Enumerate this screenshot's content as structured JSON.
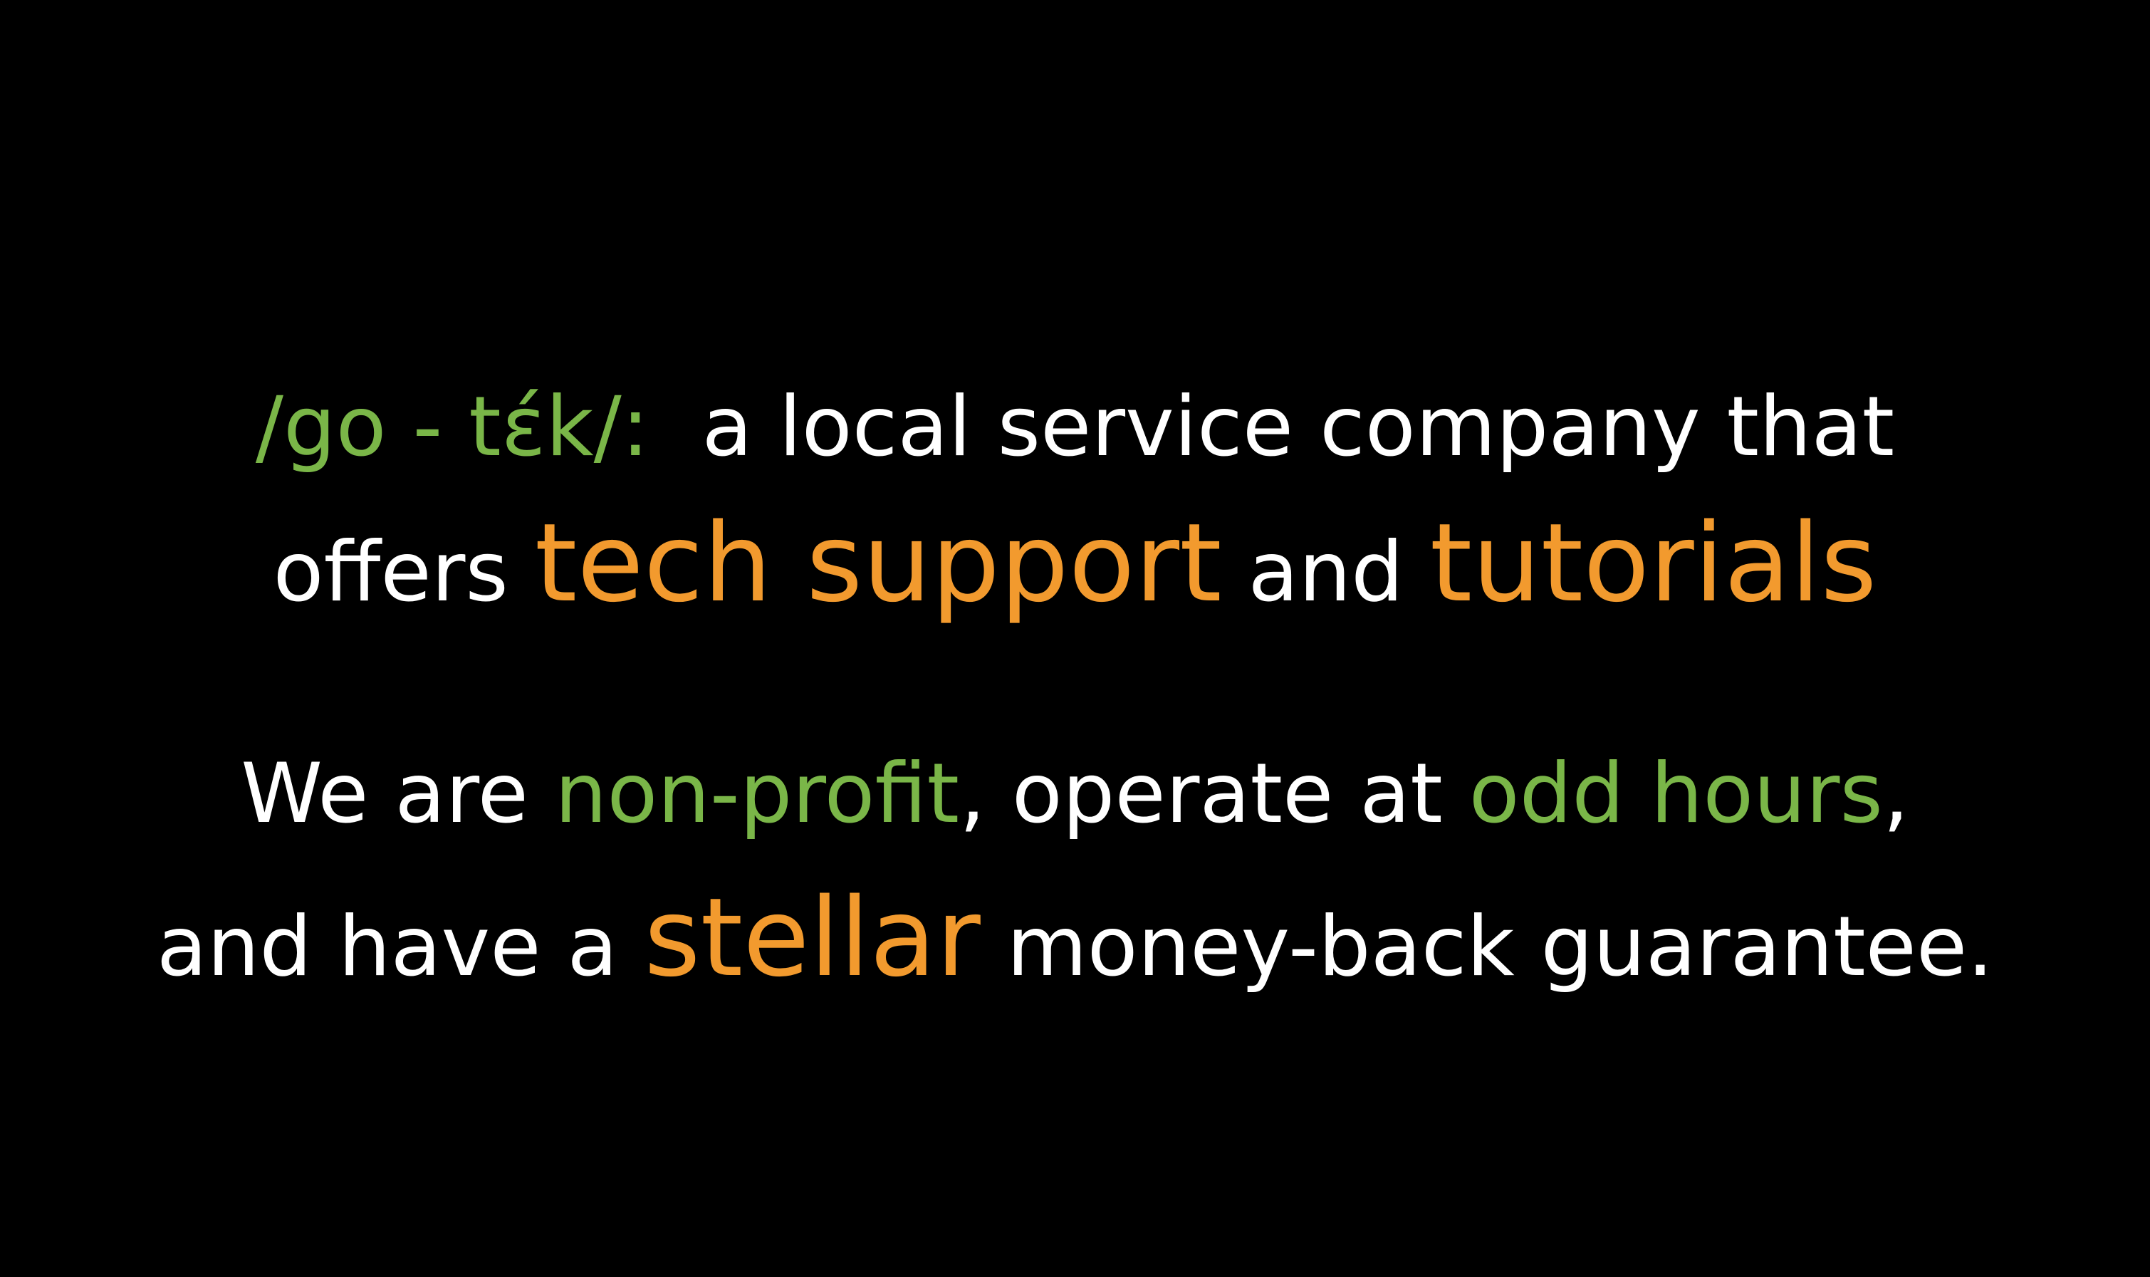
{
  "colors": {
    "background": "#000000",
    "text": "#ffffff",
    "green_accent": "#7ab648",
    "orange_accent": "#f29a2e"
  },
  "definition": {
    "pronunciation": "/go - tɛ́k/:",
    "line1_text": "a local service company that",
    "line2_prefix": "offers",
    "highlight_tech_support": "tech support",
    "line2_and": "and",
    "highlight_tutorials": "tutorials"
  },
  "tagline": {
    "line3_prefix": "We are",
    "highlight_non_profit": "non-profit",
    "line3_middle": ", operate at",
    "highlight_odd_hours": "odd hours",
    "line3_comma": ",",
    "line4_prefix": "and have a",
    "highlight_stellar": "stellar",
    "line4_suffix": "money-back guarantee."
  }
}
